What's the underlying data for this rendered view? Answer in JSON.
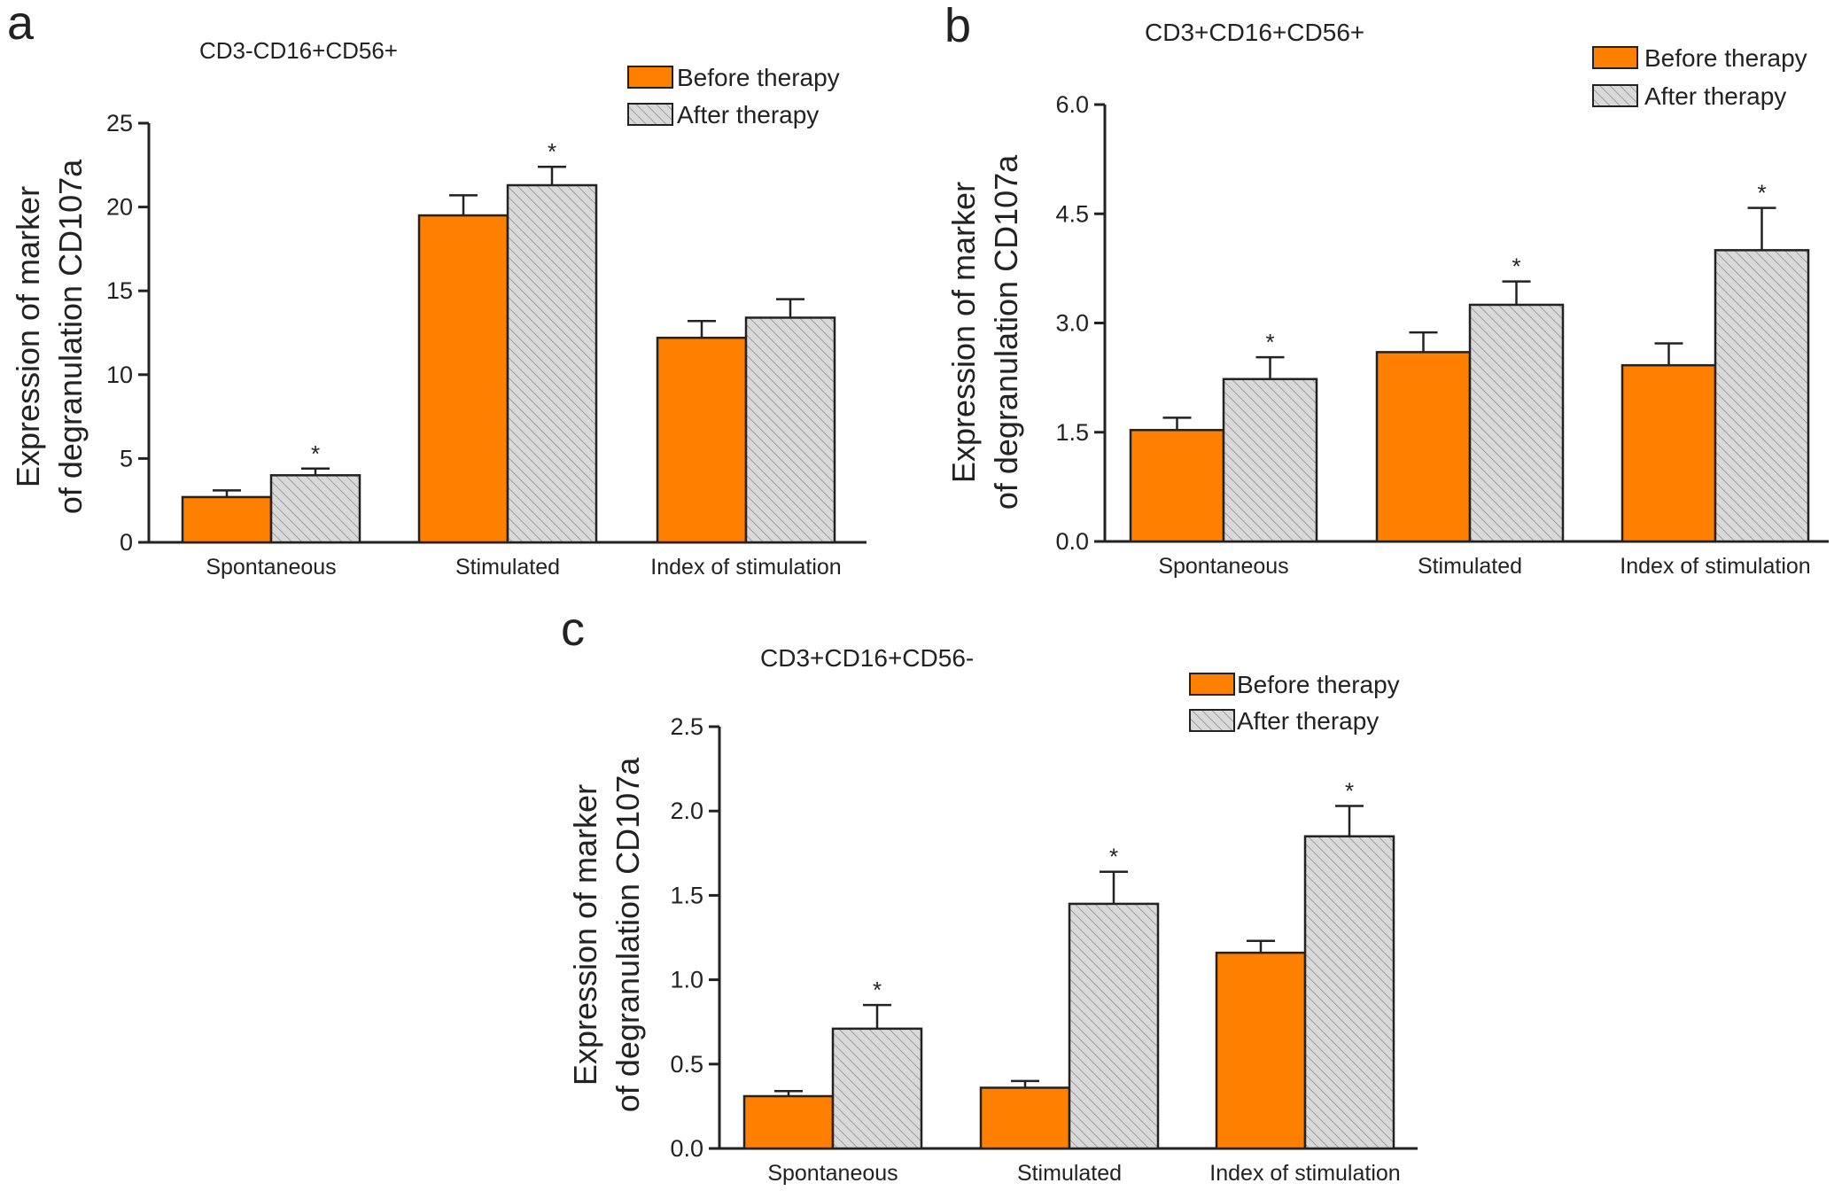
{
  "figure": {
    "colors": {
      "before": "#ff7f00",
      "after_fill": "#d9d9d9",
      "after_hatch": "#9e9e9e",
      "stroke": "#222222",
      "text": "#222222"
    },
    "legend_labels": [
      "Before therapy",
      "After therapy"
    ]
  },
  "chart_data": [
    {
      "panel_label": "a",
      "type": "bar",
      "title": "CD3-CD16+CD56+",
      "ylabel_line1": "Expression of marker",
      "ylabel_line2": "of degranulation CD107a",
      "xlabel": "",
      "categories": [
        "Spontaneous",
        "Stimulated",
        "Index of stimulation"
      ],
      "ylim": [
        0,
        25
      ],
      "yticks": [
        "0",
        "5",
        "10",
        "15",
        "20",
        "25"
      ],
      "ytick_values": [
        0,
        5,
        10,
        15,
        20,
        25
      ],
      "series": [
        {
          "name": "Before therapy",
          "values": [
            2.7,
            19.5,
            12.2
          ],
          "errors": [
            0.4,
            1.2,
            1.0
          ],
          "significant": [
            false,
            false,
            false
          ]
        },
        {
          "name": "After therapy",
          "values": [
            4.0,
            21.3,
            13.4
          ],
          "errors": [
            0.4,
            1.1,
            1.1
          ],
          "significant": [
            true,
            true,
            false
          ]
        }
      ],
      "significance_marker": "*",
      "legend": "top-right"
    },
    {
      "panel_label": "b",
      "type": "bar",
      "title": "CD3+CD16+CD56+",
      "ylabel_line1": "Expression of marker",
      "ylabel_line2": "of degranulation CD107a",
      "xlabel": "",
      "categories": [
        "Spontaneous",
        "Stimulated",
        "Index of stimulation"
      ],
      "ylim": [
        0,
        6
      ],
      "yticks": [
        "0.0",
        "1.5",
        "3.0",
        "4.5",
        "6.0"
      ],
      "ytick_values": [
        0,
        1.5,
        3.0,
        4.5,
        6.0
      ],
      "series": [
        {
          "name": "Before therapy",
          "values": [
            1.53,
            2.6,
            2.42
          ],
          "errors": [
            0.17,
            0.27,
            0.3
          ],
          "significant": [
            false,
            false,
            false
          ]
        },
        {
          "name": "After therapy",
          "values": [
            2.23,
            3.25,
            4.0
          ],
          "errors": [
            0.3,
            0.32,
            0.58
          ],
          "significant": [
            true,
            true,
            true
          ]
        }
      ],
      "significance_marker": "*",
      "legend": "top-right"
    },
    {
      "panel_label": "c",
      "type": "bar",
      "title": "CD3+CD16+CD56-",
      "ylabel_line1": "Expression of marker",
      "ylabel_line2": "of degranulation CD107a",
      "xlabel": "",
      "categories": [
        "Spontaneous",
        "Stimulated",
        "Index of stimulation"
      ],
      "ylim": [
        0,
        2.5
      ],
      "yticks": [
        "0.0",
        "0.5",
        "1.0",
        "1.5",
        "2.0",
        "2.5"
      ],
      "ytick_values": [
        0,
        0.5,
        1.0,
        1.5,
        2.0,
        2.5
      ],
      "series": [
        {
          "name": "Before therapy",
          "values": [
            0.31,
            0.36,
            1.16
          ],
          "errors": [
            0.03,
            0.04,
            0.07
          ],
          "significant": [
            false,
            false,
            false
          ]
        },
        {
          "name": "After therapy",
          "values": [
            0.71,
            1.45,
            1.85
          ],
          "errors": [
            0.14,
            0.19,
            0.18
          ],
          "significant": [
            true,
            true,
            true
          ]
        }
      ],
      "significance_marker": "*",
      "legend": "top-right"
    }
  ]
}
